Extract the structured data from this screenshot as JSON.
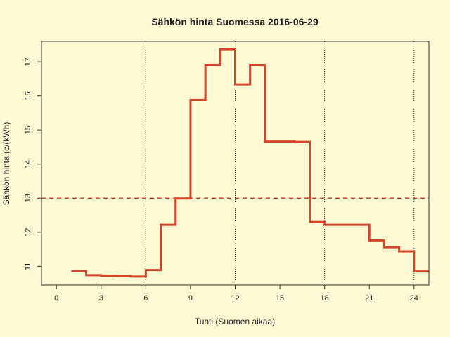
{
  "colors": {
    "background": "#fdf9d3",
    "series": "#d2452b",
    "reference": "#d2452b",
    "axis": "#333333",
    "gridline": "#333333"
  },
  "chart_data": {
    "type": "line",
    "style": "step",
    "title": "Sähkön hinta Suomessa 2016-06-29",
    "xlabel": "Tunti (Suomen aikaa)",
    "ylabel": "Sähkön hinta (c/(kWh)",
    "xlim": [
      -1,
      25
    ],
    "ylim": [
      10.45,
      17.6
    ],
    "xticks": [
      0,
      3,
      6,
      9,
      12,
      15,
      18,
      21,
      24
    ],
    "yticks": [
      11,
      12,
      13,
      14,
      15,
      16,
      17
    ],
    "vertical_gridlines": [
      6,
      12,
      18,
      24
    ],
    "reference_line": {
      "y": 13.0,
      "style": "dashed"
    },
    "series": [
      {
        "x": [
          1,
          2,
          3,
          4,
          5,
          6,
          7,
          8,
          9,
          10,
          11,
          12,
          13,
          14,
          15,
          16,
          17,
          18,
          19,
          20,
          21,
          22,
          23,
          24,
          25
        ],
        "values": [
          10.86,
          10.74,
          10.72,
          10.71,
          10.7,
          10.89,
          12.22,
          12.99,
          15.88,
          16.91,
          17.37,
          16.34,
          16.91,
          14.66,
          14.66,
          14.65,
          12.3,
          12.22,
          12.22,
          12.22,
          11.76,
          11.56,
          11.44,
          10.85,
          10.85
        ]
      }
    ]
  }
}
